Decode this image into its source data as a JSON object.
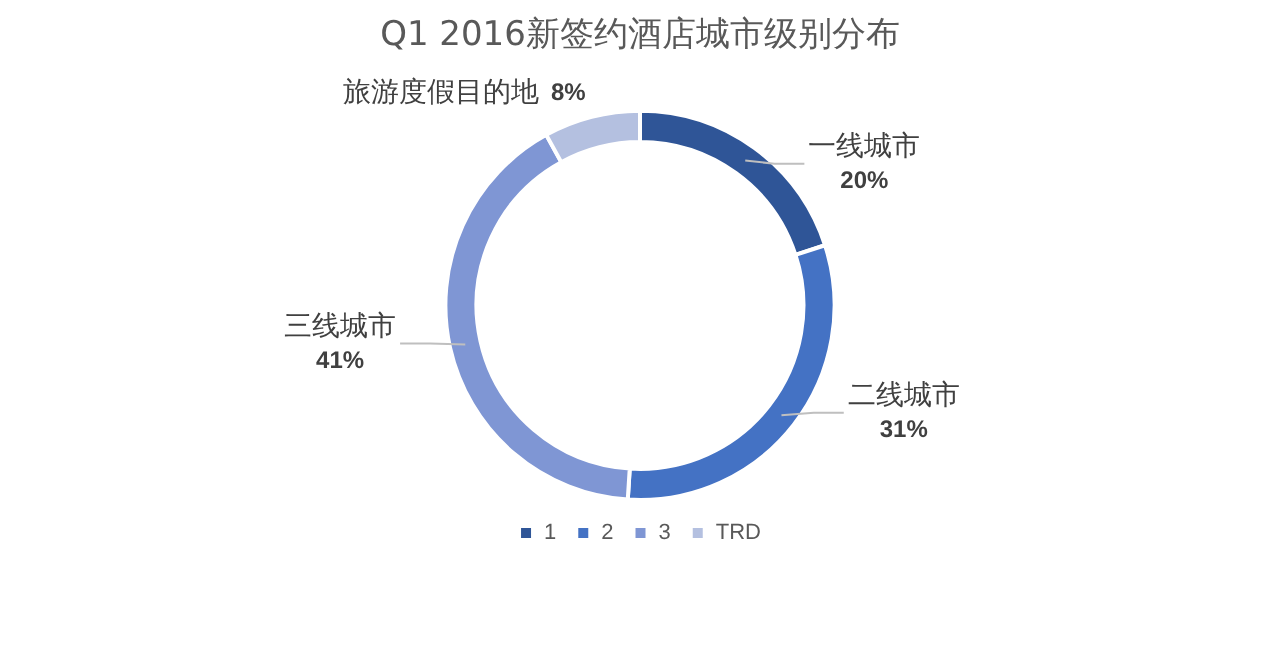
{
  "chart_data": {
    "type": "donut",
    "title": "Q1 2016新签约酒店城市级别分布",
    "categories": [
      "1",
      "2",
      "3",
      "TRD"
    ],
    "values": [
      20,
      31,
      41,
      8
    ],
    "colors": [
      "#2f5597",
      "#4472c4",
      "#7f96d4",
      "#b4c0e0"
    ],
    "value_labels": [
      "20%",
      "31%",
      "41%",
      "8%"
    ],
    "annotations": [
      "一线城市",
      "二线城市",
      "三线城市",
      "旅游度假目的地"
    ],
    "legend": "bottom"
  }
}
